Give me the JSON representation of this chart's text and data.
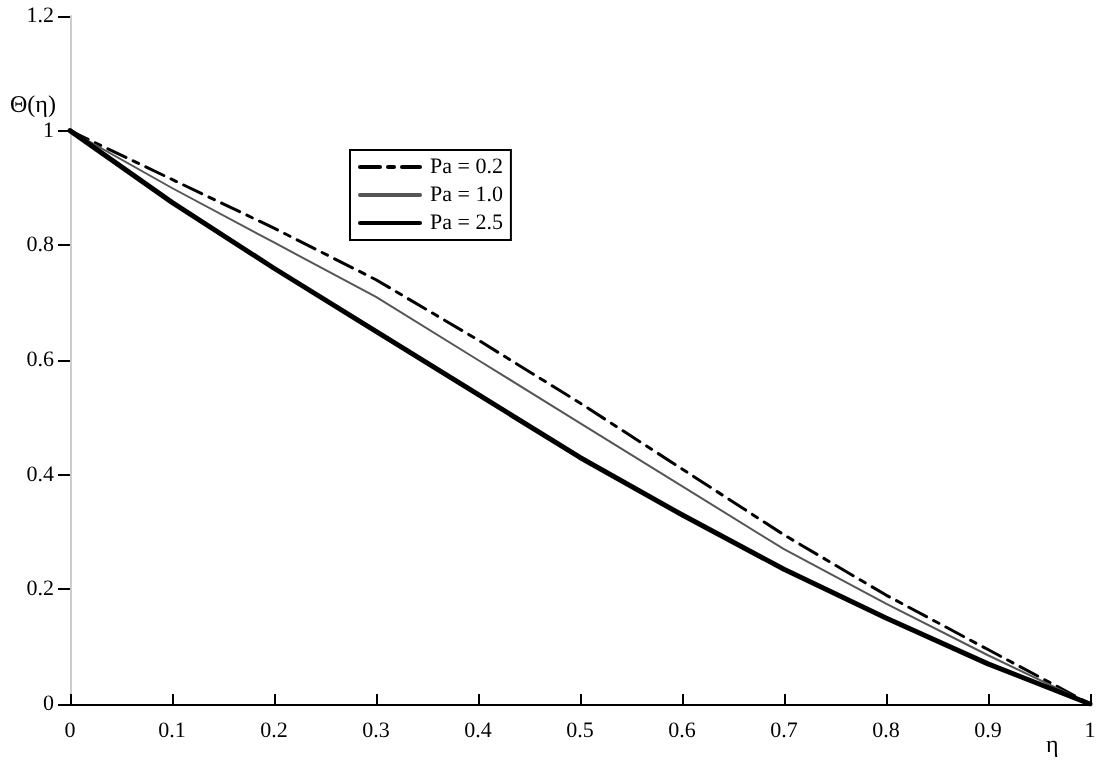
{
  "chart_data": {
    "type": "line",
    "xlabel": "η",
    "ylabel": "Θ(η)",
    "x": [
      0,
      0.1,
      0.2,
      0.3,
      0.4,
      0.5,
      0.6,
      0.7,
      0.8,
      0.9,
      1
    ],
    "series": [
      {
        "name": "Pa = 0.2",
        "color": "#000000",
        "line_style": "dashed",
        "values": [
          1,
          0.915,
          0.83,
          0.74,
          0.635,
          0.525,
          0.41,
          0.295,
          0.19,
          0.095,
          0
        ]
      },
      {
        "name": "Pa = 1.0",
        "color": "#555555",
        "line_style": "solid",
        "values": [
          1,
          0.9,
          0.805,
          0.71,
          0.6,
          0.49,
          0.38,
          0.27,
          0.175,
          0.085,
          0
        ]
      },
      {
        "name": "Pa = 2.5",
        "color": "#000000",
        "line_style": "solid",
        "values": [
          1,
          0.875,
          0.76,
          0.65,
          0.54,
          0.43,
          0.33,
          0.235,
          0.15,
          0.07,
          0
        ]
      }
    ],
    "xlim": [
      0,
      1
    ],
    "xticks": [
      0,
      0.1,
      0.2,
      0.3,
      0.4,
      0.5,
      0.6,
      0.7,
      0.8,
      0.9,
      1
    ],
    "ylim": [
      0,
      1.2
    ],
    "yticks": [
      0,
      0.2,
      0.4,
      0.6,
      0.8,
      1,
      1.2
    ],
    "grid": false,
    "legend": "top left",
    "marker": "none"
  }
}
